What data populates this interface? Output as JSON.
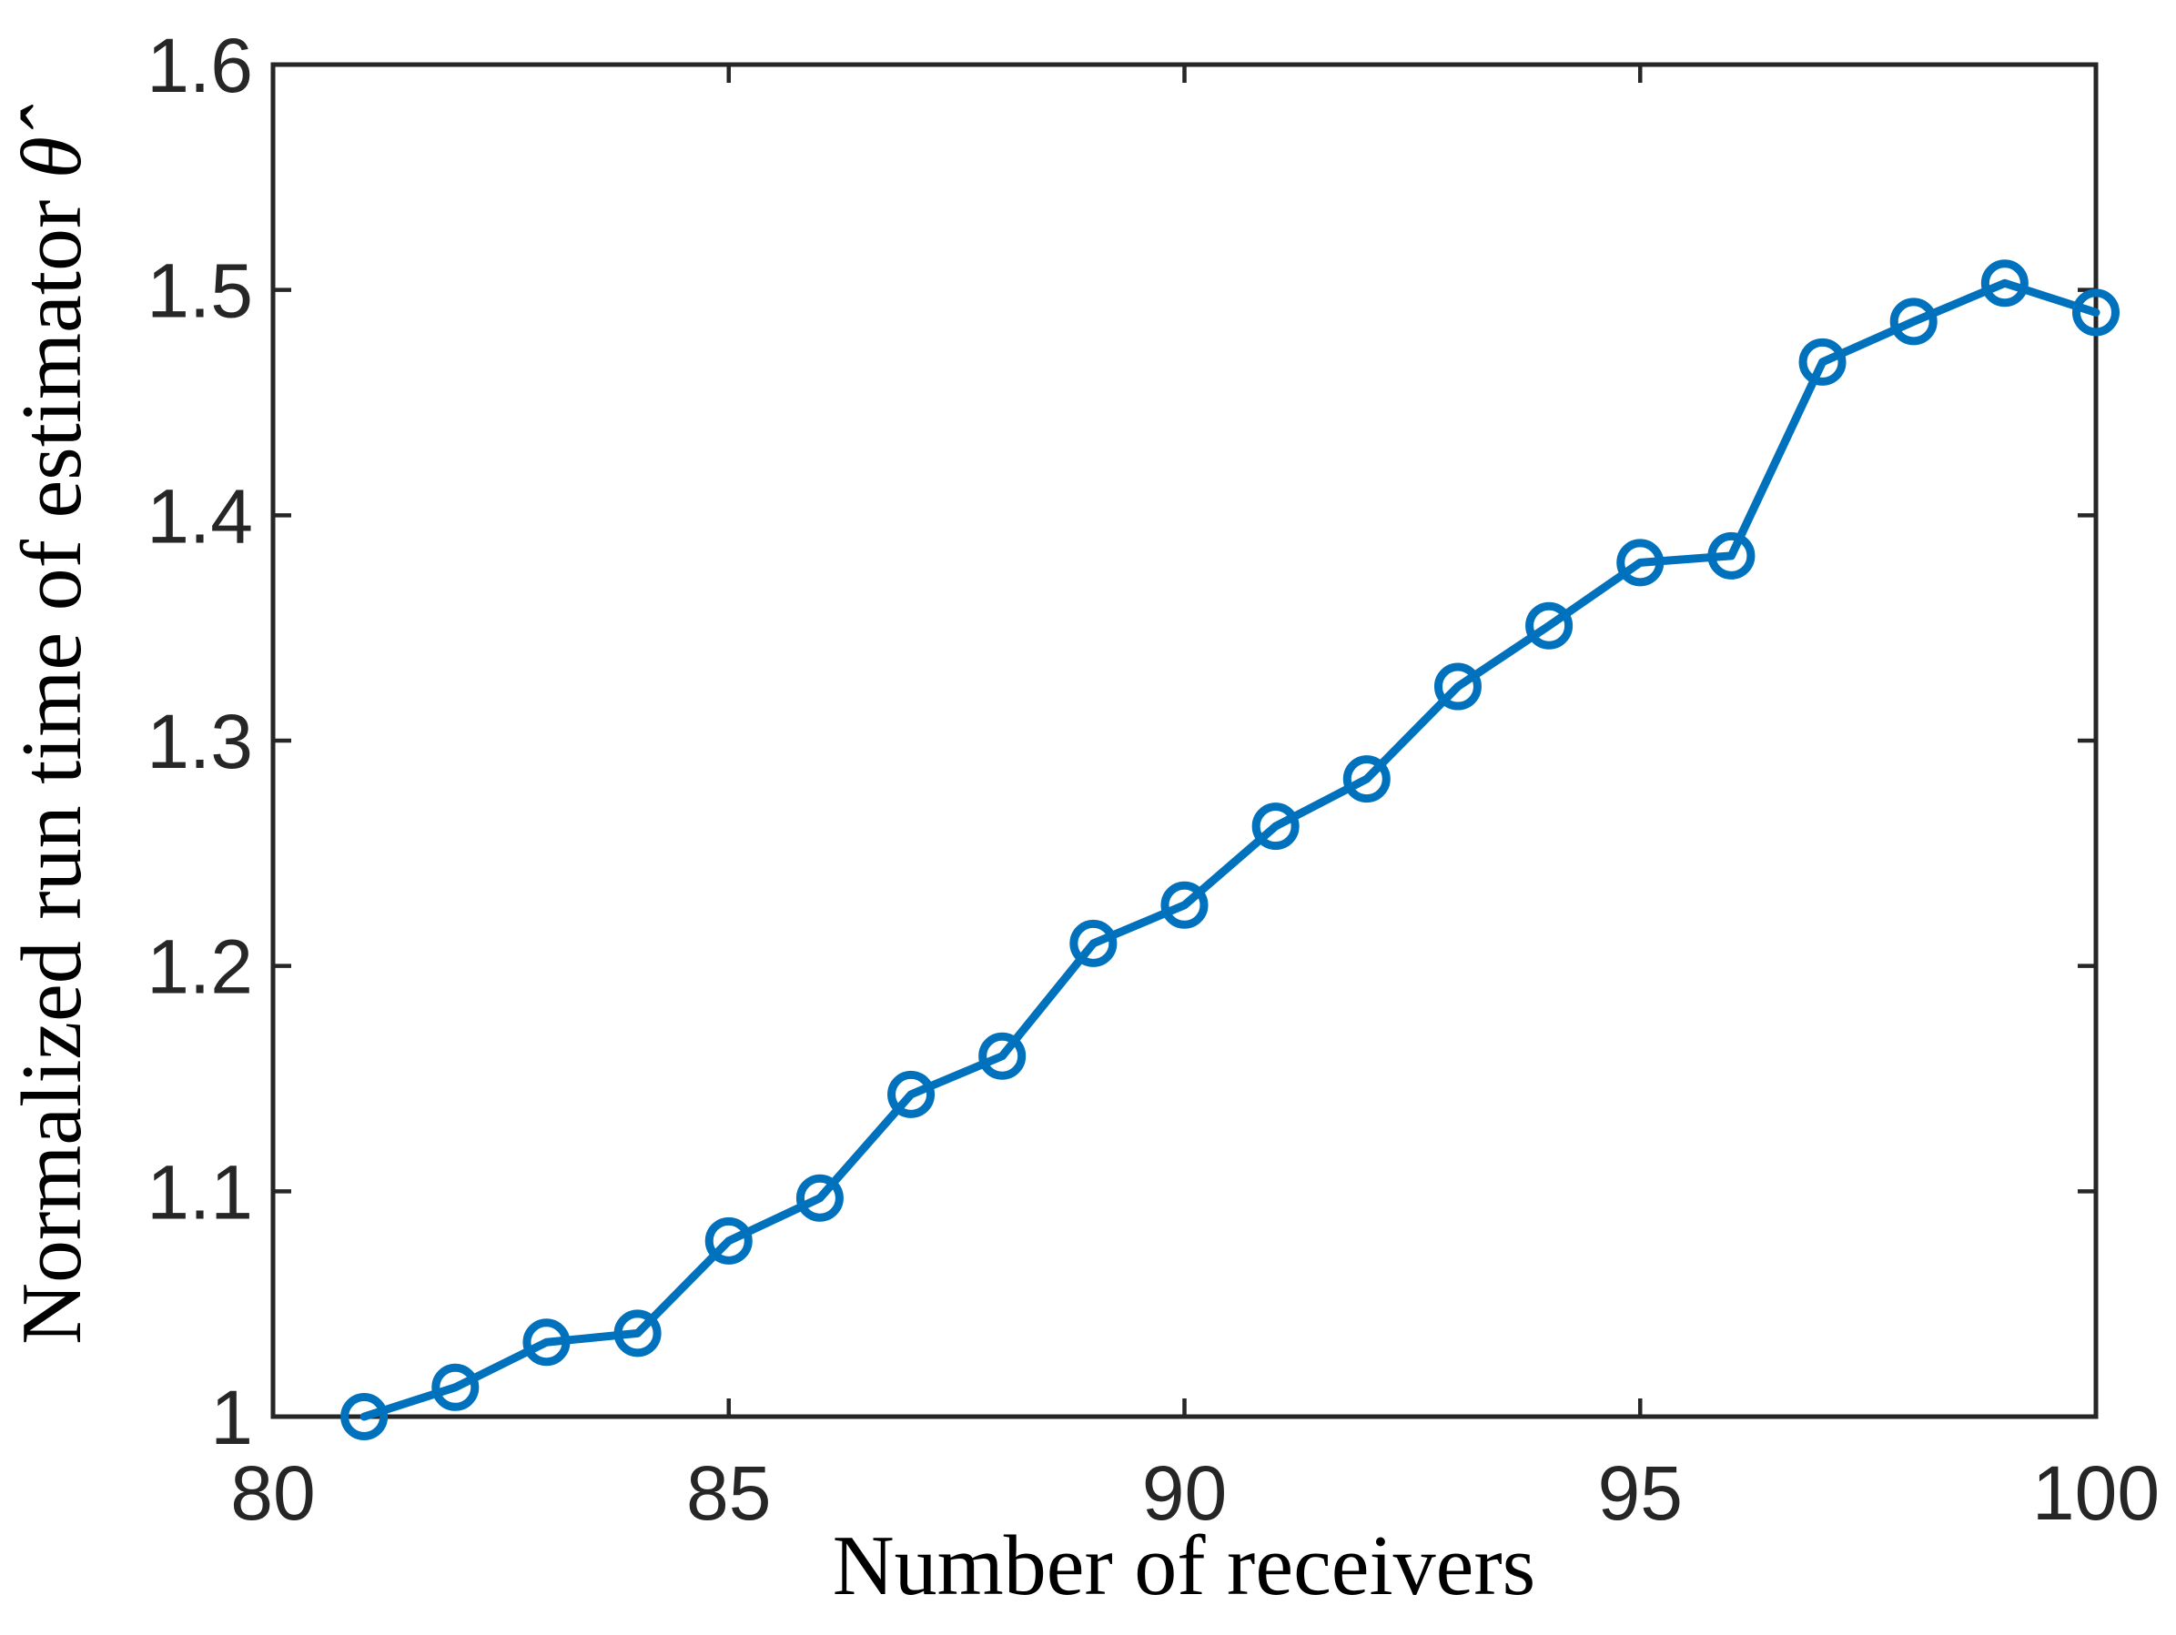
{
  "figure": {
    "background_color": "#ffffff",
    "axis_color": "#262626",
    "label_color": "#000000"
  },
  "chart_data": {
    "type": "line",
    "title": "",
    "xlabel": "Number of receivers",
    "ylabel": "Normalized run time of estimator θ̂",
    "ylabel_main": "Normalized run time of estimator ",
    "ylabel_symbol": "θ̂",
    "series": [
      {
        "name": "normalized-run-time",
        "color": "#0072BD",
        "marker": "circle",
        "x": [
          81,
          82,
          83,
          84,
          85,
          86,
          87,
          88,
          89,
          90,
          91,
          92,
          93,
          94,
          95,
          96,
          97,
          98,
          99,
          100
        ],
        "y": [
          1.0,
          1.013,
          1.033,
          1.037,
          1.078,
          1.097,
          1.143,
          1.16,
          1.21,
          1.227,
          1.262,
          1.283,
          1.324,
          1.351,
          1.379,
          1.382,
          1.468,
          1.486,
          1.503,
          1.49
        ]
      }
    ],
    "xlim": [
      80,
      100
    ],
    "ylim": [
      1.0,
      1.6
    ],
    "xticks": [
      80,
      85,
      90,
      95,
      100
    ],
    "xtick_labels": [
      "80",
      "85",
      "90",
      "95",
      "100"
    ],
    "yticks": [
      1.0,
      1.1,
      1.2,
      1.3,
      1.4,
      1.5,
      1.6
    ],
    "ytick_labels": [
      "1",
      "1.1",
      "1.2",
      "1.3",
      "1.4",
      "1.5",
      "1.6"
    ],
    "grid": false,
    "legend": null,
    "box": true,
    "tick_direction": "in"
  }
}
